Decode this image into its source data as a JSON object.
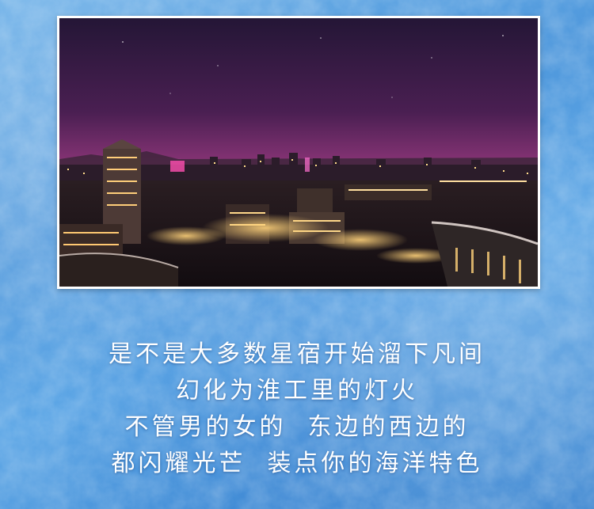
{
  "poem": {
    "lines": [
      "是不是大多数星宿开始溜下凡间",
      "幻化为淮工里的灯火",
      "不管男的女的  东边的西边的",
      "都闪耀光芒  装点你的海洋特色"
    ]
  },
  "colors": {
    "background_blue": "#5ea7e6",
    "text": "#ffffff",
    "sky_top": "#2a1a3f",
    "sky_glow": "#b23f8f"
  }
}
